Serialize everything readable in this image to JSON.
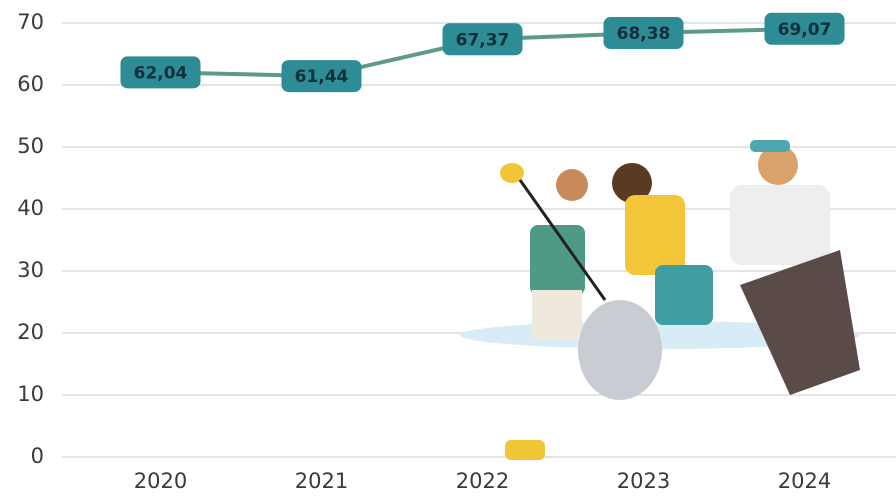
{
  "chart_data": {
    "type": "line",
    "categories": [
      "2020",
      "2021",
      "2022",
      "2023",
      "2024"
    ],
    "series": [
      {
        "color": "#5e9a88",
        "values": [
          62.04,
          61.44,
          67.37,
          68.38,
          69.07
        ],
        "value_labels": [
          "62,04",
          "61,44",
          "67,37",
          "68,38",
          "69,07"
        ]
      }
    ],
    "ylim": [
      0,
      70
    ],
    "yticks": [
      0,
      10,
      20,
      30,
      40,
      50,
      60,
      70
    ],
    "grid": true
  }
}
